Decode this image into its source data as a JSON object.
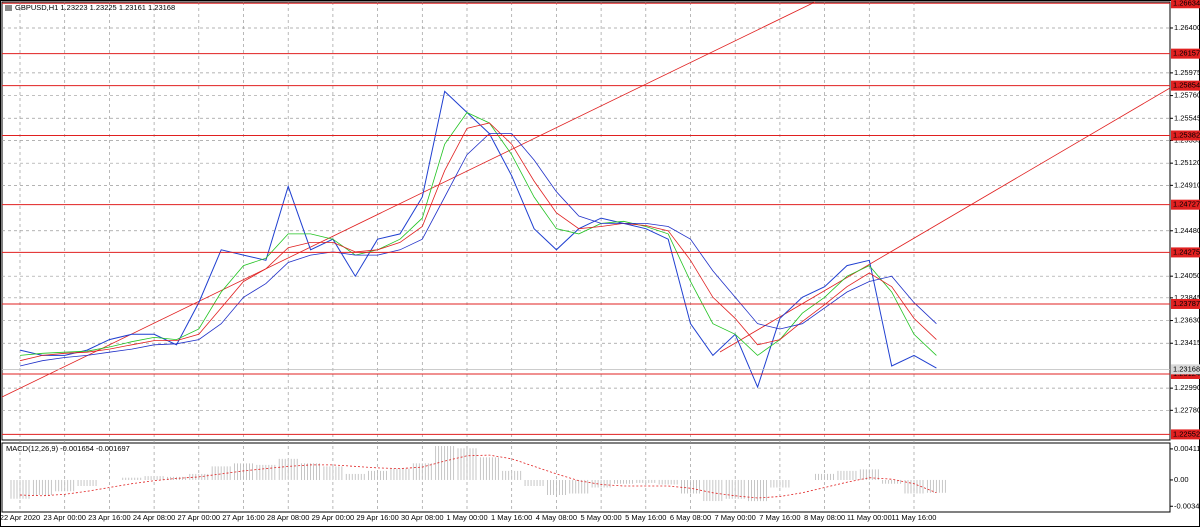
{
  "chart_data": [
    {
      "type": "line",
      "title": "GBPUSD,H1  1.23223 1.23225 1.23161 1.23168",
      "categories": [
        "22 Apr 2020",
        null,
        "23 Apr 00:00",
        null,
        "23 Apr 16:00",
        null,
        "24 Apr 08:00",
        null,
        "27 Apr 00:00",
        null,
        "27 Apr 16:00",
        null,
        "28 Apr 08:00",
        null,
        "29 Apr 00:00",
        null,
        "29 Apr 16:00",
        null,
        "30 Apr 08:00",
        null,
        "1 May 00:00",
        null,
        "1 May 16:00",
        null,
        "4 May 08:00",
        null,
        "5 May 00:00",
        null,
        "5 May 16:00",
        null,
        "6 May 08:00",
        null,
        "7 May 00:00",
        null,
        "7 May 16:00",
        null,
        "8 May 08:00",
        null,
        "11 May 00:00",
        null,
        "11 May 16:00",
        null
      ],
      "series": [
        {
          "color": "#1f3fd0",
          "values": [
            1.2335,
            1.233,
            1.233,
            1.2335,
            1.2345,
            1.235,
            1.235,
            1.234,
            1.238,
            1.243,
            1.2425,
            1.242,
            1.249,
            1.243,
            1.244,
            1.2405,
            1.244,
            1.2445,
            1.248,
            1.258,
            1.256,
            1.254,
            1.25,
            1.245,
            1.243,
            1.245,
            1.246,
            1.2455,
            1.245,
            1.244,
            1.236,
            1.233,
            1.235,
            1.23,
            1.2365,
            1.2385,
            1.2395,
            1.2415,
            1.242,
            1.232,
            1.233,
            1.2318
          ]
        },
        {
          "color": "#22c322",
          "values": [
            1.233,
            1.2332,
            1.2333,
            1.2334,
            1.2338,
            1.2343,
            1.2347,
            1.2345,
            1.2355,
            1.239,
            1.2415,
            1.2422,
            1.2445,
            1.2445,
            1.244,
            1.2425,
            1.243,
            1.244,
            1.246,
            1.253,
            1.256,
            1.255,
            1.252,
            1.248,
            1.245,
            1.2445,
            1.2455,
            1.2457,
            1.2452,
            1.2445,
            1.24,
            1.236,
            1.235,
            1.233,
            1.2345,
            1.237,
            1.2385,
            1.2405,
            1.2415,
            1.239,
            1.235,
            1.233
          ]
        },
        {
          "color": "#e02020",
          "values": [
            1.2325,
            1.233,
            1.2332,
            1.2333,
            1.2336,
            1.234,
            1.2344,
            1.2344,
            1.235,
            1.2375,
            1.24,
            1.2412,
            1.2432,
            1.2437,
            1.2437,
            1.2428,
            1.243,
            1.2437,
            1.2452,
            1.2505,
            1.2545,
            1.255,
            1.253,
            1.2495,
            1.2465,
            1.245,
            1.2452,
            1.2455,
            1.2453,
            1.2448,
            1.242,
            1.2385,
            1.2365,
            1.234,
            1.2345,
            1.2362,
            1.2378,
            1.2395,
            1.2408,
            1.2395,
            1.2365,
            1.2345
          ]
        },
        {
          "color": "#2030c8",
          "values": [
            1.232,
            1.2325,
            1.2328,
            1.233,
            1.2333,
            1.2336,
            1.234,
            1.2341,
            1.2345,
            1.236,
            1.2385,
            1.2398,
            1.2418,
            1.2425,
            1.2428,
            1.2425,
            1.2425,
            1.243,
            1.244,
            1.248,
            1.252,
            1.254,
            1.254,
            1.2515,
            1.2485,
            1.2462,
            1.2455,
            1.2455,
            1.2455,
            1.2452,
            1.244,
            1.241,
            1.2385,
            1.236,
            1.2355,
            1.236,
            1.2375,
            1.239,
            1.24,
            1.2405,
            1.238,
            1.236
          ]
        }
      ],
      "ylim": [
        1.22499,
        1.26646
      ],
      "yticks": [
        {
          "value": 1.264,
          "label": "1.26400"
        },
        {
          "value": 1.25975,
          "label": "1.25975"
        },
        {
          "value": 1.2576,
          "label": "1.25760"
        },
        {
          "value": 1.25545,
          "label": "1.25545"
        },
        {
          "value": 1.25335,
          "label": "1.25335"
        },
        {
          "value": 1.2512,
          "label": "1.25120"
        },
        {
          "value": 1.2491,
          "label": "1.24910"
        },
        {
          "value": 1.2448,
          "label": "1.24480"
        },
        {
          "value": 1.2405,
          "label": "1.24050"
        },
        {
          "value": 1.23845,
          "label": "1.23845"
        },
        {
          "value": 1.2363,
          "label": "1.23630"
        },
        {
          "value": 1.23415,
          "label": "1.23415"
        },
        {
          "value": 1.2299,
          "label": "1.22990"
        },
        {
          "value": 1.2278,
          "label": "1.22780"
        }
      ],
      "levels": [
        1.26634,
        1.26157,
        1.25854,
        1.25382,
        1.24727,
        1.24275,
        1.23787,
        1.23124,
        1.22552
      ],
      "level_color": "#e02020",
      "current_price": 1.23168,
      "grid": true
    },
    {
      "type": "bar",
      "title": "MACD(12,26,9) -0.001654 -0.001697",
      "color": "#b8b8b8",
      "values": [
        -0.0025,
        -0.002,
        -0.0015,
        -0.0008,
        0,
        0.0003,
        0.0005,
        0.0004,
        0.0008,
        0.0018,
        0.0022,
        0.002,
        0.0028,
        0.0022,
        0.0018,
        0.0008,
        0.0012,
        0.0015,
        0.0022,
        0.0045,
        0.0042,
        0.003,
        0.0012,
        -0.0008,
        -0.002,
        -0.0018,
        -0.001,
        -0.0005,
        -0.0004,
        -0.0006,
        -0.0018,
        -0.0028,
        -0.0025,
        -0.0028,
        -0.001,
        0,
        0.0008,
        0.0012,
        0.0014,
        -0.0005,
        -0.0018,
        -0.0017
      ],
      "signal": [
        -0.002,
        -0.0021,
        -0.0019,
        -0.0015,
        -0.001,
        -0.0005,
        -0.0001,
        0.0002,
        0.0004,
        0.0008,
        0.0012,
        0.0015,
        0.0018,
        0.002,
        0.002,
        0.0018,
        0.0016,
        0.0015,
        0.0017,
        0.0025,
        0.0032,
        0.0033,
        0.0028,
        0.0018,
        0.0008,
        -0.0001,
        -0.0006,
        -0.0008,
        -0.0008,
        -0.0008,
        -0.0011,
        -0.0017,
        -0.0021,
        -0.0024,
        -0.0022,
        -0.0017,
        -0.001,
        -0.0003,
        0.0003,
        0.0001,
        -0.0005,
        -0.0017
      ],
      "signal_color": "#e02020",
      "ylim": [
        -0.00425,
        0.0049
      ],
      "yticks": [
        0.004116,
        {
          "value": 0,
          "label": "0.00"
        },
        -0.00349
      ]
    }
  ]
}
